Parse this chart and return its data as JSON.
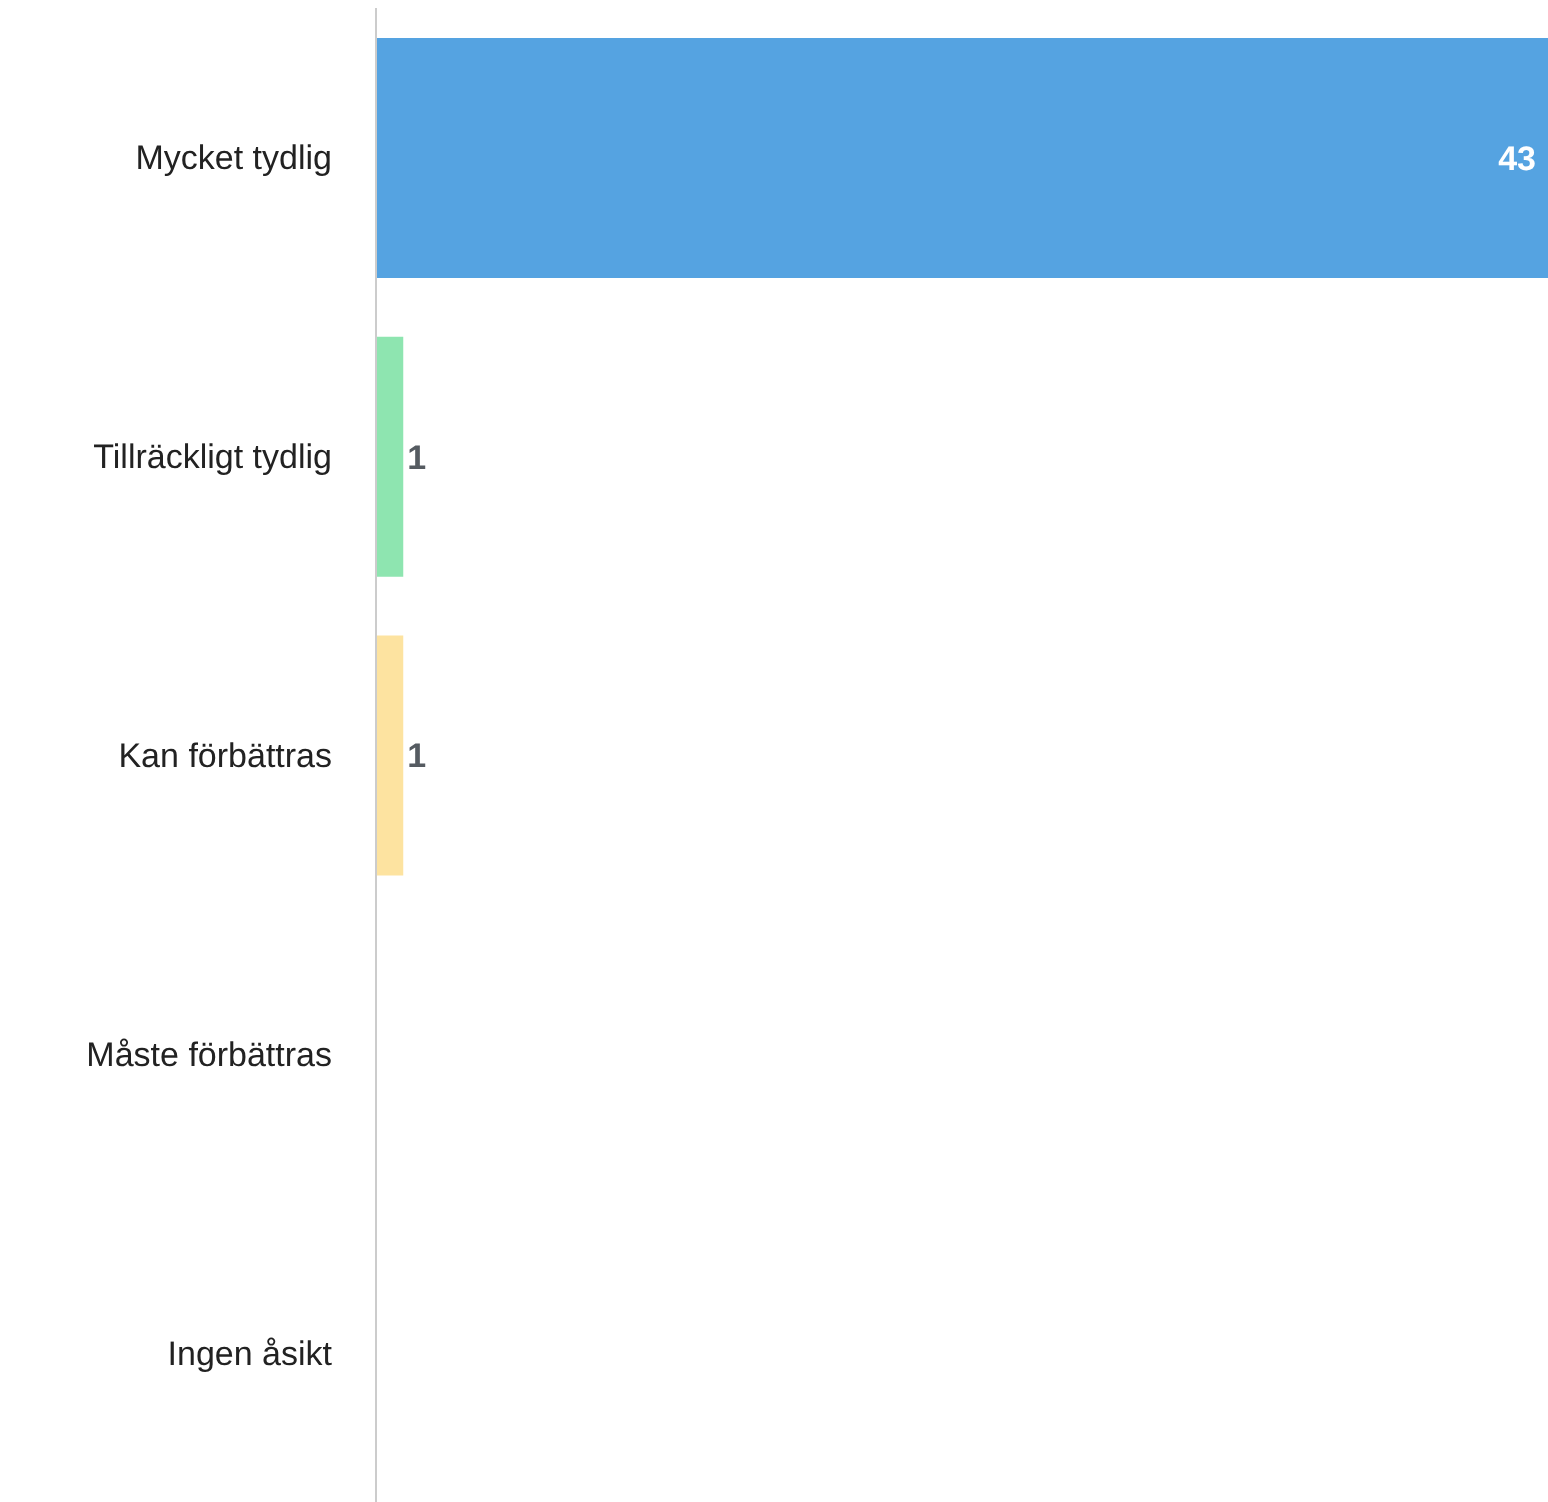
{
  "chart_data": {
    "type": "bar",
    "orientation": "horizontal",
    "categories": [
      "Mycket tydlig",
      "Tillräckligt tydlig",
      "Kan förbättras",
      "Måste förbättras",
      "Ingen åsikt"
    ],
    "values": [
      43,
      1,
      1,
      0,
      0
    ],
    "colors": [
      "#55a3e1",
      "#8ee5b0",
      "#fde3a0",
      null,
      null
    ],
    "value_labels": [
      "43",
      "1",
      "1",
      null,
      null
    ],
    "grid": false,
    "legend": false
  }
}
